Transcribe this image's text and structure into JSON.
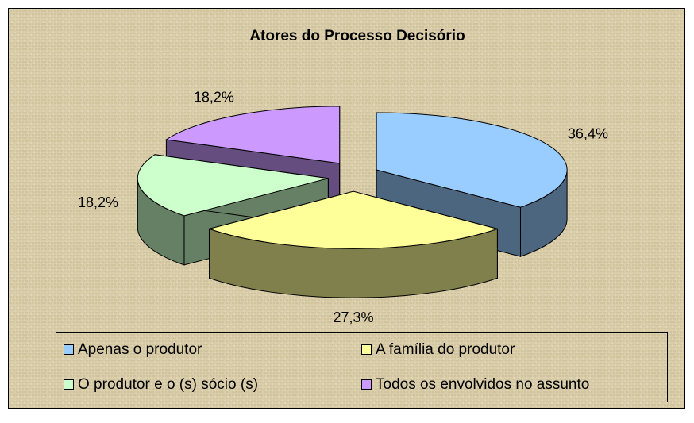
{
  "chart_data": {
    "type": "pie3d",
    "title": "Atores do Processo Decisório",
    "categories": [
      "Apenas o produtor",
      "A família do produtor",
      "O produtor e o (s) sócio (s)",
      "Todos os envolvidos no assunto"
    ],
    "values": [
      36.4,
      27.3,
      18.2,
      18.2
    ],
    "value_labels": [
      "36,4%",
      "27,3%",
      "18,2%",
      "18,2%"
    ],
    "colors": [
      "#99ccff",
      "#ffff99",
      "#ccffcc",
      "#cc99ff"
    ],
    "legend": "bottom"
  }
}
